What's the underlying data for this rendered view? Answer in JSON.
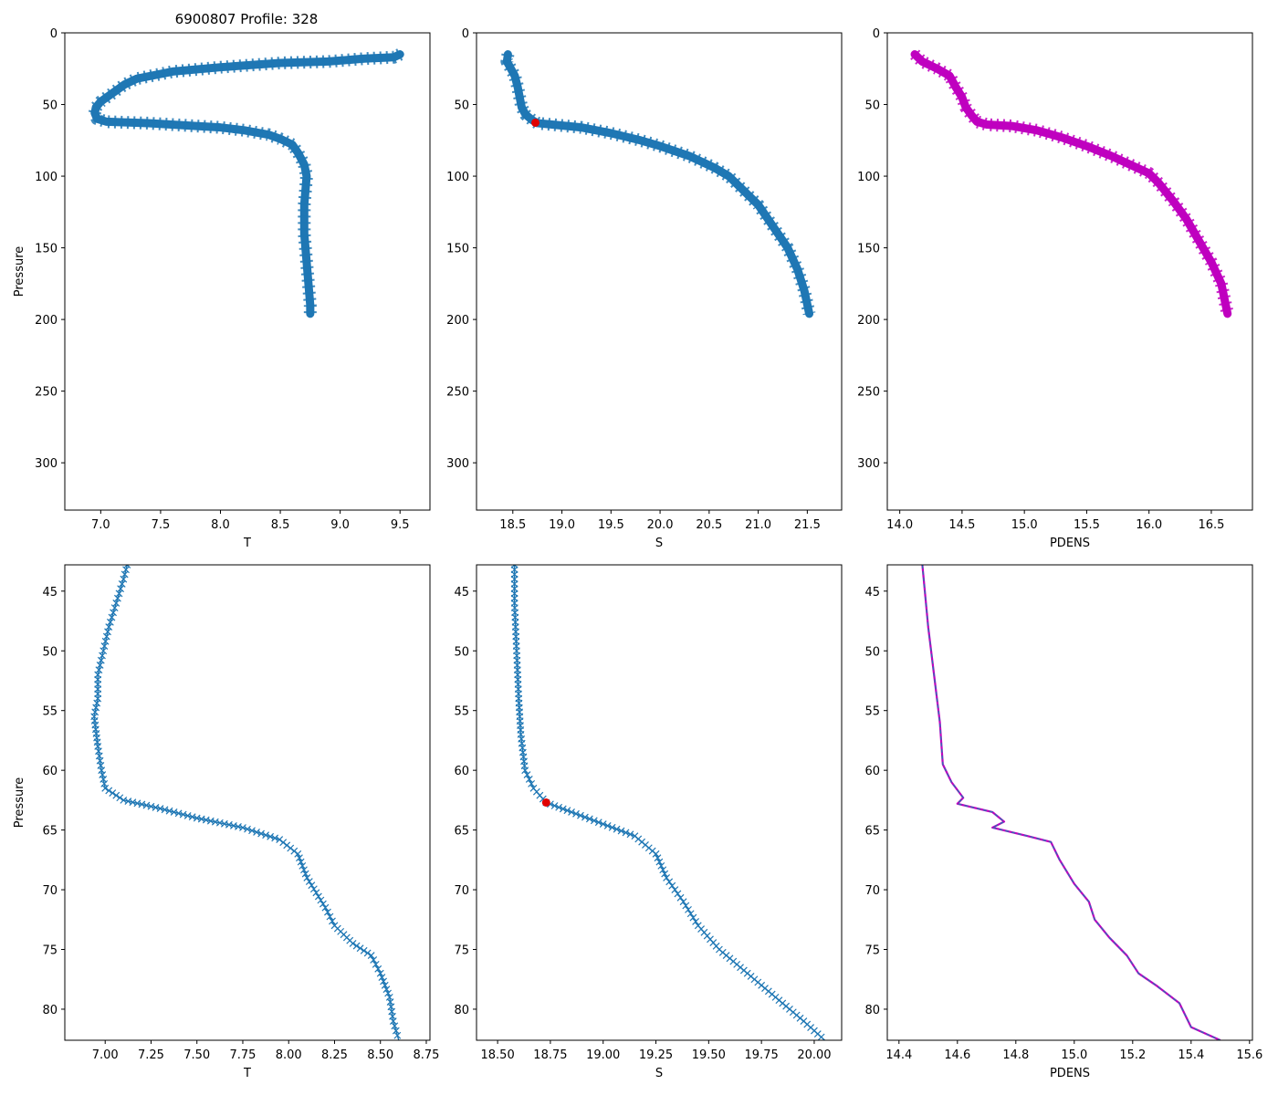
{
  "figure": {
    "title": "6900807 Profile: 328"
  },
  "colors": {
    "profile": "#1f77b4",
    "density": "#bf00bf",
    "marker": "#e00000",
    "overlay": "#1f77b4"
  },
  "chart_data": [
    {
      "type": "line",
      "name": "T overview",
      "xlabel": "T",
      "ylabel": "Pressure",
      "xlim": [
        6.7,
        9.75
      ],
      "ylim": [
        333,
        0
      ],
      "xticks": [
        7.0,
        7.5,
        8.0,
        8.5,
        9.0,
        9.5
      ],
      "xtick_labels": [
        "7.0",
        "7.5",
        "8.0",
        "8.5",
        "9.0",
        "9.5"
      ],
      "yticks": [
        0,
        50,
        100,
        150,
        200,
        250,
        300
      ],
      "ytick_labels": [
        "0",
        "50",
        "100",
        "150",
        "200",
        "250",
        "300"
      ],
      "series": [
        {
          "name": "T",
          "color": "#1f77b4",
          "style": "thick-x",
          "points": [
            [
              9.5,
              15
            ],
            [
              9.45,
              17
            ],
            [
              9.2,
              18
            ],
            [
              8.9,
              20
            ],
            [
              8.5,
              21
            ],
            [
              8.0,
              24
            ],
            [
              7.6,
              27
            ],
            [
              7.3,
              32
            ],
            [
              7.2,
              36
            ],
            [
              7.1,
              42
            ],
            [
              7.0,
              48
            ],
            [
              6.96,
              52
            ],
            [
              6.95,
              56
            ],
            [
              6.97,
              60
            ],
            [
              7.05,
              62
            ],
            [
              7.4,
              63
            ],
            [
              7.8,
              65
            ],
            [
              8.0,
              66
            ],
            [
              8.2,
              68
            ],
            [
              8.4,
              71
            ],
            [
              8.5,
              74
            ],
            [
              8.6,
              78
            ],
            [
              8.65,
              84
            ],
            [
              8.7,
              92
            ],
            [
              8.72,
              100
            ],
            [
              8.71,
              110
            ],
            [
              8.7,
              120
            ],
            [
              8.7,
              130
            ],
            [
              8.7,
              140
            ],
            [
              8.71,
              150
            ],
            [
              8.72,
              160
            ],
            [
              8.73,
              170
            ],
            [
              8.74,
              180
            ],
            [
              8.75,
              190
            ],
            [
              8.75,
              196
            ]
          ]
        }
      ]
    },
    {
      "type": "line",
      "name": "S overview",
      "xlabel": "S",
      "ylabel": "",
      "xlim": [
        18.13,
        21.85
      ],
      "ylim": [
        333,
        0
      ],
      "xticks": [
        18.5,
        19.0,
        19.5,
        20.0,
        20.5,
        21.0,
        21.5
      ],
      "xtick_labels": [
        "18.5",
        "19.0",
        "19.5",
        "20.0",
        "20.5",
        "21.0",
        "21.5"
      ],
      "yticks": [
        0,
        50,
        100,
        150,
        200,
        250,
        300
      ],
      "ytick_labels": [
        "0",
        "50",
        "100",
        "150",
        "200",
        "250",
        "300"
      ],
      "series": [
        {
          "name": "S",
          "color": "#1f77b4",
          "style": "thick-x",
          "points": [
            [
              18.45,
              15
            ],
            [
              18.44,
              20
            ],
            [
              18.48,
              25
            ],
            [
              18.52,
              30
            ],
            [
              18.55,
              38
            ],
            [
              18.57,
              45
            ],
            [
              18.59,
              52
            ],
            [
              18.63,
              57
            ],
            [
              18.7,
              61
            ],
            [
              18.75,
              63
            ],
            [
              18.9,
              64
            ],
            [
              19.2,
              66
            ],
            [
              19.5,
              70
            ],
            [
              19.8,
              75
            ],
            [
              20.0,
              79
            ],
            [
              20.3,
              86
            ],
            [
              20.55,
              94
            ],
            [
              20.7,
              100
            ],
            [
              20.85,
              110
            ],
            [
              21.0,
              120
            ],
            [
              21.15,
              135
            ],
            [
              21.3,
              150
            ],
            [
              21.4,
              165
            ],
            [
              21.47,
              180
            ],
            [
              21.52,
              196
            ]
          ]
        }
      ],
      "markers": [
        {
          "x": 18.73,
          "y": 62.7,
          "color": "#e00000"
        }
      ]
    },
    {
      "type": "line",
      "name": "PDENS overview",
      "xlabel": "PDENS",
      "ylabel": "",
      "xlim": [
        13.9,
        16.83
      ],
      "ylim": [
        333,
        0
      ],
      "xticks": [
        14.0,
        14.5,
        15.0,
        15.5,
        16.0,
        16.5
      ],
      "xtick_labels": [
        "14.0",
        "14.5",
        "15.0",
        "15.5",
        "16.0",
        "16.5"
      ],
      "yticks": [
        0,
        50,
        100,
        150,
        200,
        250,
        300
      ],
      "ytick_labels": [
        "0",
        "50",
        "100",
        "150",
        "200",
        "250",
        "300"
      ],
      "series": [
        {
          "name": "PDENS",
          "color": "#bf00bf",
          "style": "thick-x",
          "points": [
            [
              14.12,
              15
            ],
            [
              14.18,
              20
            ],
            [
              14.3,
              25
            ],
            [
              14.4,
              30
            ],
            [
              14.45,
              38
            ],
            [
              14.5,
              45
            ],
            [
              14.53,
              52
            ],
            [
              14.58,
              58
            ],
            [
              14.62,
              62
            ],
            [
              14.7,
              64
            ],
            [
              14.9,
              65
            ],
            [
              15.1,
              68
            ],
            [
              15.3,
              73
            ],
            [
              15.5,
              79
            ],
            [
              15.7,
              86
            ],
            [
              15.85,
              92
            ],
            [
              16.0,
              98
            ],
            [
              16.08,
              105
            ],
            [
              16.2,
              118
            ],
            [
              16.3,
              130
            ],
            [
              16.4,
              145
            ],
            [
              16.5,
              160
            ],
            [
              16.58,
              175
            ],
            [
              16.63,
              196
            ]
          ]
        }
      ]
    },
    {
      "type": "line",
      "name": "T zoom",
      "xlabel": "T",
      "ylabel": "Pressure",
      "xlim": [
        6.78,
        8.77
      ],
      "ylim": [
        82.6,
        42.8
      ],
      "xticks": [
        7.0,
        7.25,
        7.5,
        7.75,
        8.0,
        8.25,
        8.5,
        8.75
      ],
      "xtick_labels": [
        "7.00",
        "7.25",
        "7.50",
        "7.75",
        "8.00",
        "8.25",
        "8.50",
        "8.75"
      ],
      "yticks": [
        45,
        50,
        55,
        60,
        65,
        70,
        75,
        80
      ],
      "ytick_labels": [
        "45",
        "50",
        "55",
        "60",
        "65",
        "70",
        "75",
        "80"
      ],
      "series": [
        {
          "name": "T",
          "color": "#1f77b4",
          "style": "thin-x",
          "points": [
            [
              7.12,
              42.8
            ],
            [
              7.1,
              44
            ],
            [
              7.06,
              46
            ],
            [
              7.02,
              48
            ],
            [
              6.99,
              50
            ],
            [
              6.96,
              52
            ],
            [
              6.96,
              54
            ],
            [
              6.94,
              55.5
            ],
            [
              6.96,
              58
            ],
            [
              6.98,
              60
            ],
            [
              7.0,
              61.5
            ],
            [
              7.1,
              62.5
            ],
            [
              7.3,
              63.2
            ],
            [
              7.5,
              64
            ],
            [
              7.75,
              64.8
            ],
            [
              7.95,
              65.8
            ],
            [
              8.05,
              67
            ],
            [
              8.1,
              69
            ],
            [
              8.2,
              71.5
            ],
            [
              8.25,
              73
            ],
            [
              8.35,
              74.5
            ],
            [
              8.45,
              75.5
            ],
            [
              8.5,
              77
            ],
            [
              8.55,
              79
            ],
            [
              8.57,
              81
            ],
            [
              8.6,
              82.6
            ]
          ]
        }
      ]
    },
    {
      "type": "line",
      "name": "S zoom",
      "xlabel": "S",
      "ylabel": "",
      "xlim": [
        18.4,
        20.13
      ],
      "ylim": [
        82.6,
        42.8
      ],
      "xticks": [
        18.5,
        18.75,
        19.0,
        19.25,
        19.5,
        19.75,
        20.0
      ],
      "xtick_labels": [
        "18.50",
        "18.75",
        "19.00",
        "19.25",
        "19.50",
        "19.75",
        "20.00"
      ],
      "yticks": [
        45,
        50,
        55,
        60,
        65,
        70,
        75,
        80
      ],
      "ytick_labels": [
        "45",
        "50",
        "55",
        "60",
        "65",
        "70",
        "75",
        "80"
      ],
      "series": [
        {
          "name": "S",
          "color": "#1f77b4",
          "style": "thin-x",
          "points": [
            [
              18.58,
              42.8
            ],
            [
              18.58,
              46
            ],
            [
              18.59,
              50
            ],
            [
              18.6,
              54
            ],
            [
              18.61,
              57
            ],
            [
              18.63,
              60
            ],
            [
              18.67,
              61.5
            ],
            [
              18.73,
              62.7
            ],
            [
              18.85,
              63.5
            ],
            [
              19.0,
              64.5
            ],
            [
              19.15,
              65.5
            ],
            [
              19.25,
              67
            ],
            [
              19.3,
              69
            ],
            [
              19.38,
              71
            ],
            [
              19.45,
              73
            ],
            [
              19.55,
              75
            ],
            [
              19.65,
              76.5
            ],
            [
              19.75,
              78
            ],
            [
              19.85,
              79.5
            ],
            [
              19.95,
              81
            ],
            [
              20.05,
              82.6
            ]
          ]
        }
      ],
      "markers": [
        {
          "x": 18.73,
          "y": 62.7,
          "color": "#e00000"
        }
      ]
    },
    {
      "type": "line",
      "name": "PDENS zoom",
      "xlabel": "PDENS",
      "ylabel": "",
      "xlim": [
        14.36,
        15.61
      ],
      "ylim": [
        82.6,
        42.8
      ],
      "xticks": [
        14.4,
        14.6,
        14.8,
        15.0,
        15.2,
        15.4,
        15.6
      ],
      "xtick_labels": [
        "14.4",
        "14.6",
        "14.8",
        "15.0",
        "15.2",
        "15.4",
        "15.6"
      ],
      "yticks": [
        45,
        50,
        55,
        60,
        65,
        70,
        75,
        80
      ],
      "ytick_labels": [
        "45",
        "50",
        "55",
        "60",
        "65",
        "70",
        "75",
        "80"
      ],
      "series": [
        {
          "name": "PDENS",
          "color": "#bf00bf",
          "style": "thin-line",
          "points": [
            [
              14.48,
              42.8
            ],
            [
              14.5,
              48
            ],
            [
              14.52,
              52
            ],
            [
              14.54,
              56
            ],
            [
              14.55,
              59.5
            ],
            [
              14.58,
              61
            ],
            [
              14.62,
              62.3
            ],
            [
              14.6,
              62.8
            ],
            [
              14.72,
              63.5
            ],
            [
              14.76,
              64.3
            ],
            [
              14.72,
              64.8
            ],
            [
              14.84,
              65.5
            ],
            [
              14.92,
              66
            ],
            [
              14.95,
              67.5
            ],
            [
              15.0,
              69.5
            ],
            [
              15.05,
              71
            ],
            [
              15.07,
              72.5
            ],
            [
              15.12,
              74
            ],
            [
              15.18,
              75.5
            ],
            [
              15.22,
              77
            ],
            [
              15.28,
              78
            ],
            [
              15.36,
              79.5
            ],
            [
              15.4,
              81.5
            ],
            [
              15.5,
              82.6
            ]
          ]
        },
        {
          "name": "PDENS overlay",
          "color": "#1f77b4",
          "style": "dashed-line",
          "points": [
            [
              14.48,
              42.8
            ],
            [
              14.5,
              48
            ],
            [
              14.52,
              52
            ],
            [
              14.54,
              56
            ],
            [
              14.55,
              59.5
            ],
            [
              14.58,
              61
            ],
            [
              14.62,
              62.3
            ],
            [
              14.6,
              62.8
            ],
            [
              14.72,
              63.5
            ],
            [
              14.76,
              64.3
            ],
            [
              14.72,
              64.8
            ],
            [
              14.84,
              65.5
            ],
            [
              14.92,
              66
            ],
            [
              14.95,
              67.5
            ],
            [
              15.0,
              69.5
            ],
            [
              15.05,
              71
            ],
            [
              15.07,
              72.5
            ],
            [
              15.12,
              74
            ],
            [
              15.18,
              75.5
            ],
            [
              15.22,
              77
            ],
            [
              15.28,
              78
            ],
            [
              15.36,
              79.5
            ],
            [
              15.4,
              81.5
            ],
            [
              15.5,
              82.6
            ]
          ]
        }
      ]
    }
  ]
}
